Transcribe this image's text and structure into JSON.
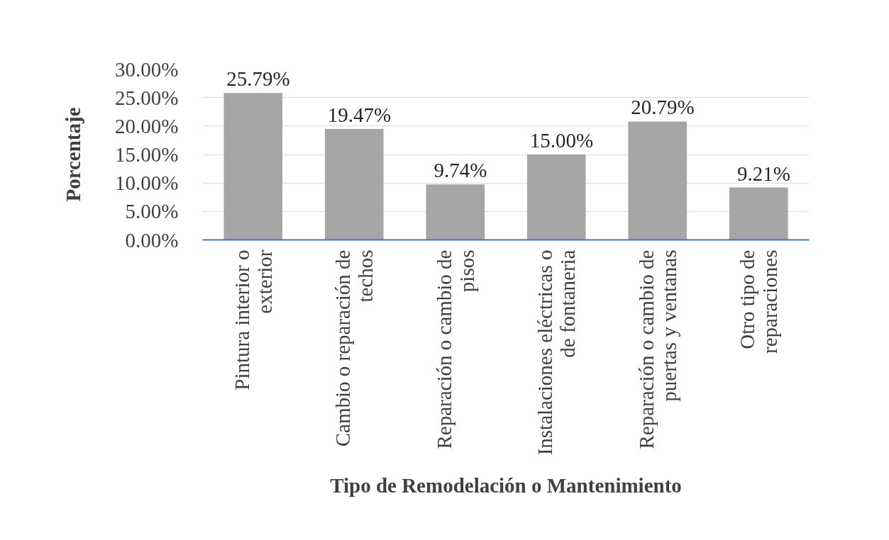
{
  "chart_data": {
    "type": "bar",
    "xlabel": "Tipo de Remodelación o Mantenimiento",
    "ylabel": "Porcentaje",
    "categories": [
      "Pintura interior o\nexterior",
      "Cambio o reparación de\ntechos",
      "Reparación o cambio de\npisos",
      "Instalaciones eléctricas o\nde fontaneria",
      "Reparación o cambio de\npuertas y ventanas",
      "Otro tipo de\nreparaciones"
    ],
    "values": [
      25.79,
      19.47,
      9.74,
      15.0,
      20.79,
      9.21
    ],
    "value_labels": [
      "25.79%",
      "19.47%",
      "9.74%",
      "15.00%",
      "20.79%",
      "9.21%"
    ],
    "color": "#a6a6a6",
    "ylim": [
      0,
      30
    ],
    "yticks": [
      {
        "value": 0,
        "label": "0.00%"
      },
      {
        "value": 5,
        "label": "5.00%"
      },
      {
        "value": 10,
        "label": "10.00%"
      },
      {
        "value": 15,
        "label": "15.00%"
      },
      {
        "value": 20,
        "label": "20.00%"
      },
      {
        "value": 25,
        "label": "25.00%"
      },
      {
        "value": 30,
        "label": "30.00%"
      }
    ],
    "grid": "y"
  }
}
